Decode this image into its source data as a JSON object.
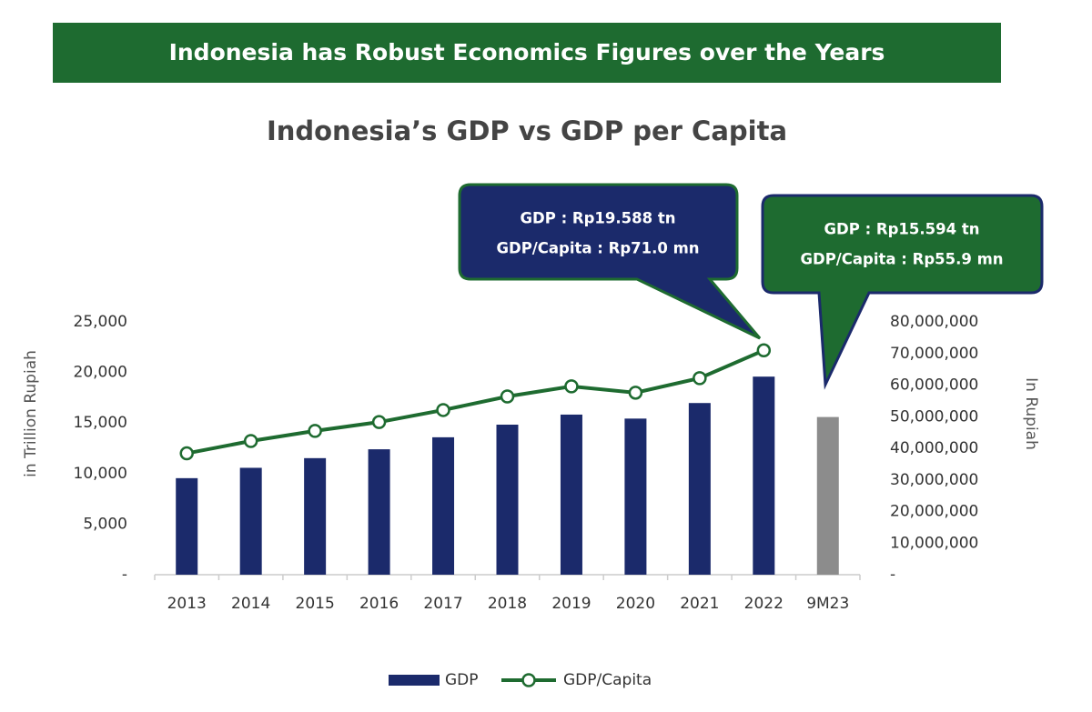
{
  "banner": "Indonesia has Robust Economics Figures over the Years",
  "chart_data": {
    "type": "bar+line",
    "title": "Indonesia’s GDP vs GDP per Capita",
    "y_label": "in Trillion  Rupiah",
    "y2_label": "In Rupiah",
    "categories": [
      "2013",
      "2014",
      "2015",
      "2016",
      "2017",
      "2018",
      "2019",
      "2020",
      "2021",
      "2022",
      "9M23"
    ],
    "series": [
      {
        "name": "GDP",
        "type": "bar",
        "axis": "y",
        "color": "#1b2a6b",
        "colors": [
          "#1b2a6b",
          "#1b2a6b",
          "#1b2a6b",
          "#1b2a6b",
          "#1b2a6b",
          "#1b2a6b",
          "#1b2a6b",
          "#1b2a6b",
          "#1b2a6b",
          "#1b2a6b",
          "#8c8c8c"
        ],
        "values": [
          9546,
          10570,
          11526,
          12402,
          13590,
          14838,
          15833,
          15438,
          16977,
          19588,
          15594
        ]
      },
      {
        "name": "GDP/Capita",
        "type": "line",
        "axis": "y2",
        "color": "#1e6b30",
        "values": [
          38400000,
          42300000,
          45500000,
          48300000,
          52100000,
          56400000,
          59600000,
          57600000,
          62200000,
          71000000,
          null
        ]
      }
    ],
    "ylim": [
      0,
      25000
    ],
    "yticks": [
      {
        "value": 0,
        "label": "-"
      },
      {
        "value": 5000,
        "label": "5,000"
      },
      {
        "value": 10000,
        "label": "10,000"
      },
      {
        "value": 15000,
        "label": "15,000"
      },
      {
        "value": 20000,
        "label": "20,000"
      },
      {
        "value": 25000,
        "label": "25,000"
      }
    ],
    "y2lim": [
      0,
      80000000
    ],
    "y2ticks": [
      {
        "value": 0,
        "label": "-"
      },
      {
        "value": 10000000,
        "label": "10,000,000"
      },
      {
        "value": 20000000,
        "label": "20,000,000"
      },
      {
        "value": 30000000,
        "label": "30,000,000"
      },
      {
        "value": 40000000,
        "label": "40,000,000"
      },
      {
        "value": 50000000,
        "label": "50,000,000"
      },
      {
        "value": 60000000,
        "label": "60,000,000"
      },
      {
        "value": 70000000,
        "label": "70,000,000"
      },
      {
        "value": 80000000,
        "label": "80,000,000"
      }
    ],
    "grid": false,
    "legend": "bottom",
    "annotations": [
      [
        "GDP : Rp19.588 tn",
        "GDP/Capita : Rp71.0 mn"
      ],
      [
        "GDP : Rp15.594 tn",
        "GDP/Capita : Rp55.9 mn"
      ]
    ]
  }
}
